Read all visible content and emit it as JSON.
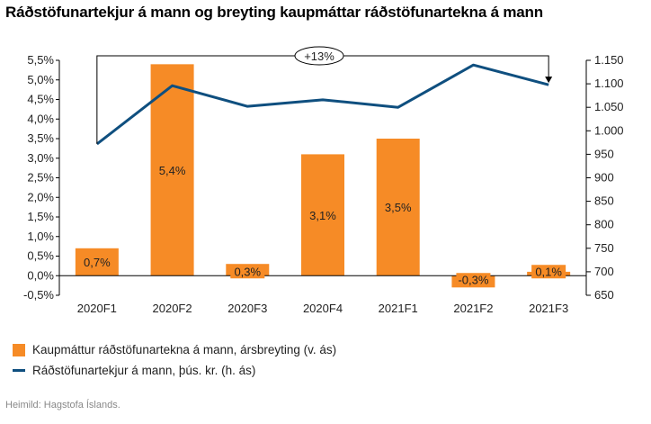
{
  "chart_data": {
    "type": "bar+line",
    "title": "Ráðstöfunartekjur á mann og breyting kaupmáttar ráðstöfunartekna á mann",
    "categories": [
      "2020F1",
      "2020F2",
      "2020F3",
      "2020F4",
      "2021F1",
      "2021F2",
      "2021F3"
    ],
    "series": [
      {
        "name": "Kaupmáttur ráðstöfunartekna á mann, ársbreyting (v. ás)",
        "type": "bar",
        "axis": "left",
        "color": "#f68b26",
        "values": [
          0.7,
          5.4,
          0.3,
          3.1,
          3.5,
          -0.3,
          0.1
        ],
        "labels": [
          "0,7%",
          "5,4%",
          "0,3%",
          "3,1%",
          "3,5%",
          "-0,3%",
          "0,1%"
        ]
      },
      {
        "name": "Ráðstöfunartekjur á mann, þús. kr. (h. ás)",
        "type": "line",
        "axis": "right",
        "color": "#0f4f7f",
        "values": [
          972,
          1096,
          1052,
          1066,
          1050,
          1140,
          1098
        ]
      }
    ],
    "left_axis": {
      "ylim": [
        -0.5,
        5.5
      ],
      "ticks": [
        "-0,5%",
        "0,0%",
        "0,5%",
        "1,0%",
        "1,5%",
        "2,0%",
        "2,5%",
        "3,0%",
        "3,5%",
        "4,0%",
        "4,5%",
        "5,0%",
        "5,5%"
      ]
    },
    "right_axis": {
      "ylim": [
        650,
        1150
      ],
      "ticks": [
        "650",
        "700",
        "750",
        "800",
        "850",
        "900",
        "950",
        "1.000",
        "1.050",
        "1.100",
        "1.150"
      ]
    },
    "annotation": "+13%",
    "legend_position": "bottom-left"
  },
  "source": "Heimild: Hagstofa Íslands."
}
